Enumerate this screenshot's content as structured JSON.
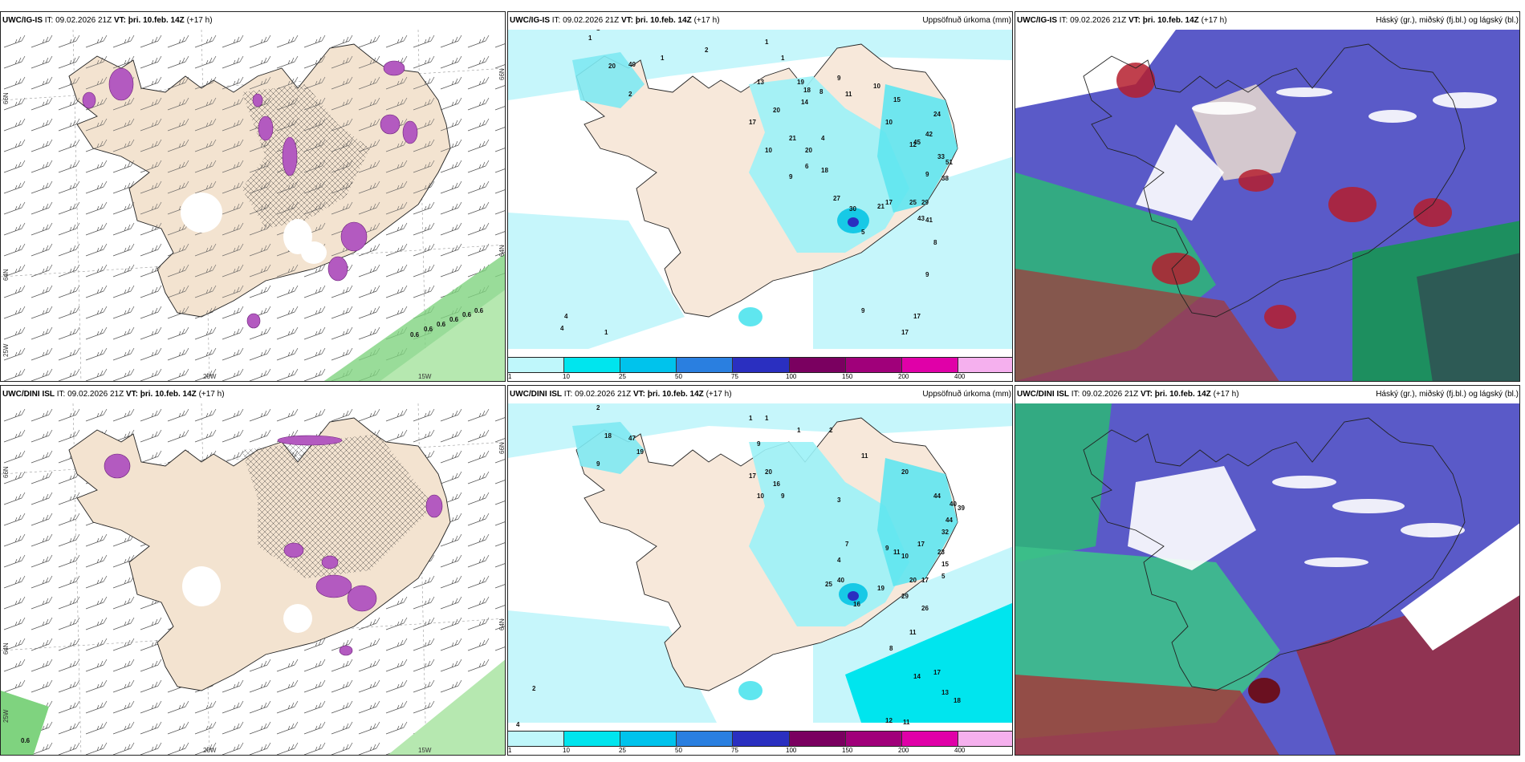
{
  "panels": [
    {
      "id": "p1",
      "model": "UWC/IG-IS",
      "it_label": "IT:",
      "it_time": "09.02.2026 21Z",
      "vt_label": "VT:",
      "vt_time": "þri. 10.feb. 14Z",
      "lead": "(+17 h)",
      "right_title": "",
      "axis": {
        "lat1": "66N",
        "lat2": "64N",
        "lon1": "20W",
        "lon2": "15W",
        "lon3": "25W"
      }
    },
    {
      "id": "p2",
      "model": "UWC/IG-IS",
      "it_label": "IT:",
      "it_time": "09.02.2026 21Z",
      "vt_label": "VT:",
      "vt_time": "þri. 10.feb. 14Z",
      "lead": "(+17 h)",
      "right_title": "Uppsöfnuð úrkoma (mm)"
    },
    {
      "id": "p3",
      "model": "UWC/IG-IS",
      "it_label": "IT:",
      "it_time": "09.02.2026 21Z",
      "vt_label": "VT:",
      "vt_time": "þri. 10.feb. 14Z",
      "lead": "(+17 h)",
      "right_title": "Háský (gr.), miðský (fj.bl.) og lágský (bl.)"
    },
    {
      "id": "p4",
      "model": "UWC/DINI ISL",
      "it_label": "IT:",
      "it_time": "09.02.2026 21Z",
      "vt_label": "VT:",
      "vt_time": "þri. 10.feb. 14Z",
      "lead": "(+17 h)",
      "right_title": "",
      "axis": {
        "lat1": "66N",
        "lat2": "64N",
        "lon1": "20W",
        "lon2": "15W",
        "lon3": "25W"
      }
    },
    {
      "id": "p5",
      "model": "UWC/DINI ISL",
      "it_label": "IT:",
      "it_time": "09.02.2026 21Z",
      "vt_label": "VT:",
      "vt_time": "þri. 10.feb. 14Z",
      "lead": "(+17 h)",
      "right_title": "Uppsöfnuð úrkoma (mm)"
    },
    {
      "id": "p6",
      "model": "UWC/DINI ISL",
      "it_label": "IT:",
      "it_time": "09.02.2026 21Z",
      "vt_label": "VT:",
      "vt_time": "þri. 10.feb. 14Z",
      "lead": "(+17 h)",
      "right_title": "Háský (gr.), miðský (fj.bl.) og lágský (bl.)"
    }
  ],
  "colorbar": {
    "ticks": [
      "1",
      "10",
      "25",
      "50",
      "75",
      "100",
      "150",
      "200",
      "400"
    ],
    "colors": [
      "#bff7fb",
      "#00e5ee",
      "#00c3ec",
      "#2a7fe0",
      "#2a2fc0",
      "#7a0060",
      "#a0007a",
      "#e000a8",
      "#f5b0ee"
    ]
  },
  "precip_values_top": [
    "1",
    "1",
    "1",
    "2",
    "1",
    "1",
    "20",
    "40",
    "2",
    "13",
    "19",
    "18",
    "14",
    "8",
    "9",
    "11",
    "10",
    "15",
    "24",
    "42",
    "33",
    "51",
    "45",
    "20",
    "17",
    "21",
    "20",
    "10",
    "9",
    "4",
    "6",
    "12",
    "18",
    "10",
    "9",
    "38",
    "29",
    "27",
    "30",
    "21",
    "17",
    "25",
    "43",
    "41",
    "5",
    "8",
    "9",
    "17",
    "17",
    "9",
    "4",
    "4",
    "1",
    "1"
  ],
  "precip_values_bottom": [
    "2",
    "1",
    "1",
    "1",
    "2",
    "18",
    "47",
    "19",
    "9",
    "9",
    "17",
    "20",
    "16",
    "10",
    "9",
    "11",
    "20",
    "44",
    "40",
    "39",
    "44",
    "32",
    "23",
    "15",
    "5",
    "17",
    "20",
    "16",
    "3",
    "7",
    "4",
    "9",
    "11",
    "17",
    "10",
    "25",
    "40",
    "19",
    "29",
    "26",
    "11",
    "8",
    "14",
    "17",
    "18",
    "13",
    "12",
    "11",
    "17",
    "18",
    "30",
    "2",
    "4",
    "7",
    "6",
    "7",
    "13",
    "13"
  ],
  "wind_value_top": "0.6",
  "wind_value_bottom": "0.6"
}
